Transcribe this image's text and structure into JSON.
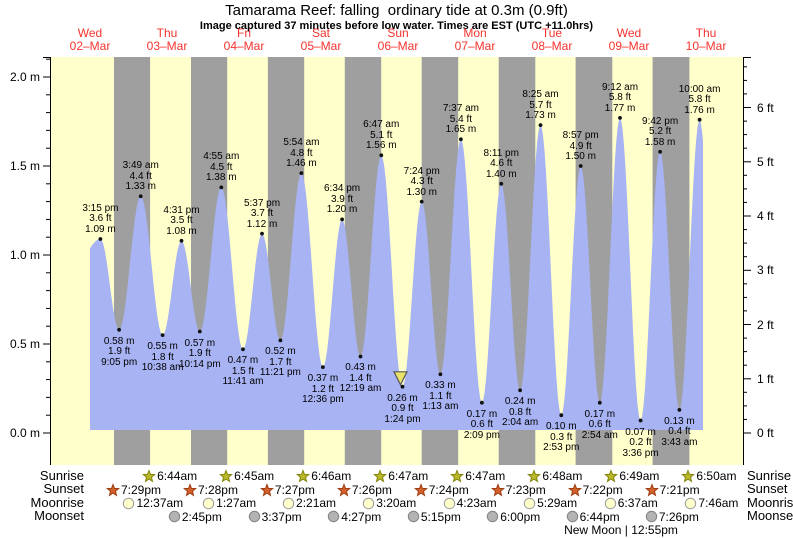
{
  "title": "Tamarama Reef: falling  ordinary tide at 0.3m (0.9ft)",
  "subtitle": "Image captured 37 minutes before low water. Times are EST (UTC +11.0hrs)",
  "days": [
    {
      "weekday": "Wed",
      "date": "02–Mar"
    },
    {
      "weekday": "Thu",
      "date": "03–Mar"
    },
    {
      "weekday": "Fri",
      "date": "04–Mar"
    },
    {
      "weekday": "Sat",
      "date": "05–Mar"
    },
    {
      "weekday": "Sun",
      "date": "06–Mar"
    },
    {
      "weekday": "Mon",
      "date": "07–Mar"
    },
    {
      "weekday": "Tue",
      "date": "08–Mar"
    },
    {
      "weekday": "Wed",
      "date": "09–Mar"
    },
    {
      "weekday": "Thu",
      "date": "10–Mar"
    }
  ],
  "chart_data": {
    "type": "area",
    "title": "Tamarama Reef tide height",
    "x_axis": "days (02-Mar to 10-Mar), position = time of day",
    "y_left": {
      "unit": "m",
      "tick_labels": [
        "0.0 m",
        "0.5 m",
        "1.0 m",
        "1.5 m",
        "2.0 m"
      ],
      "range": [
        0,
        2.11
      ]
    },
    "y_right": {
      "unit": "ft",
      "tick_labels": [
        "0 ft",
        "1 ft",
        "2 ft",
        "3 ft",
        "4 ft",
        "5 ft",
        "6 ft"
      ],
      "range": [
        0,
        6.93
      ]
    },
    "legend": "none",
    "grid": "none",
    "tide_events": [
      {
        "day": 0,
        "time": "3:15 pm",
        "type": "high",
        "m": 1.09,
        "ft": 3.6
      },
      {
        "day": 0,
        "time": "9:05 pm",
        "type": "low",
        "m": 0.58,
        "ft": 1.9
      },
      {
        "day": 1,
        "time": "3:49 am",
        "type": "high",
        "m": 1.33,
        "ft": 4.4
      },
      {
        "day": 1,
        "time": "10:38 am",
        "type": "low",
        "m": 0.55,
        "ft": 1.8
      },
      {
        "day": 1,
        "time": "4:31 pm",
        "type": "high",
        "m": 1.08,
        "ft": 3.5
      },
      {
        "day": 1,
        "time": "10:14 pm",
        "type": "low",
        "m": 0.57,
        "ft": 1.9
      },
      {
        "day": 2,
        "time": "4:55 am",
        "type": "high",
        "m": 1.38,
        "ft": 4.5
      },
      {
        "day": 2,
        "time": "11:41 am",
        "type": "low",
        "m": 0.47,
        "ft": 1.5
      },
      {
        "day": 2,
        "time": "5:37 pm",
        "type": "high",
        "m": 1.12,
        "ft": 3.7
      },
      {
        "day": 2,
        "time": "11:21 pm",
        "type": "low",
        "m": 0.52,
        "ft": 1.7
      },
      {
        "day": 3,
        "time": "5:54 am",
        "type": "high",
        "m": 1.46,
        "ft": 4.8
      },
      {
        "day": 3,
        "time": "12:36 pm",
        "type": "low",
        "m": 0.37,
        "ft": 1.2
      },
      {
        "day": 3,
        "time": "6:34 pm",
        "type": "high",
        "m": 1.2,
        "ft": 3.9
      },
      {
        "day": 4,
        "time": "12:19 am",
        "type": "low",
        "m": 0.43,
        "ft": 1.4
      },
      {
        "day": 4,
        "time": "6:47 am",
        "type": "high",
        "m": 1.56,
        "ft": 5.1
      },
      {
        "day": 4,
        "time": "1:24 pm",
        "type": "low",
        "m": 0.26,
        "ft": 0.9
      },
      {
        "day": 4,
        "time": "7:24 pm",
        "type": "high",
        "m": 1.3,
        "ft": 4.3
      },
      {
        "day": 5,
        "time": "1:13 am",
        "type": "low",
        "m": 0.33,
        "ft": 1.1
      },
      {
        "day": 5,
        "time": "7:37 am",
        "type": "high",
        "m": 1.65,
        "ft": 5.4
      },
      {
        "day": 5,
        "time": "2:09 pm",
        "type": "low",
        "m": 0.17,
        "ft": 0.6
      },
      {
        "day": 5,
        "time": "8:11 pm",
        "type": "high",
        "m": 1.4,
        "ft": 4.6
      },
      {
        "day": 6,
        "time": "2:04 am",
        "type": "low",
        "m": 0.24,
        "ft": 0.8
      },
      {
        "day": 6,
        "time": "8:25 am",
        "type": "high",
        "m": 1.73,
        "ft": 5.7
      },
      {
        "day": 6,
        "time": "2:53 pm",
        "type": "low",
        "m": 0.1,
        "ft": 0.3
      },
      {
        "day": 6,
        "time": "8:57 pm",
        "type": "high",
        "m": 1.5,
        "ft": 4.9
      },
      {
        "day": 7,
        "time": "2:54 am",
        "type": "low",
        "m": 0.17,
        "ft": 0.6
      },
      {
        "day": 7,
        "time": "9:12 am",
        "type": "high",
        "m": 1.77,
        "ft": 5.8
      },
      {
        "day": 7,
        "time": "3:36 pm",
        "type": "low",
        "m": 0.07,
        "ft": 0.2
      },
      {
        "day": 7,
        "time": "9:42 pm",
        "type": "high",
        "m": 1.58,
        "ft": 5.2
      },
      {
        "day": 8,
        "time": "3:43 am",
        "type": "low",
        "m": 0.13,
        "ft": 0.4
      },
      {
        "day": 8,
        "time": "10:00 am",
        "type": "high",
        "m": 1.76,
        "ft": 5.8
      }
    ],
    "current_marker": {
      "event_index": 15,
      "minutes_before_low": 37,
      "current_height_m": 0.3
    }
  },
  "sun_moon": {
    "rows": [
      {
        "label": "Sunrise",
        "icon": "sunrise-star",
        "fill": "#b9b92a",
        "stroke": "#84840f",
        "events": [
          {
            "day": 1,
            "time": "6:44am"
          },
          {
            "day": 2,
            "time": "6:45am"
          },
          {
            "day": 3,
            "time": "6:46am"
          },
          {
            "day": 4,
            "time": "6:47am"
          },
          {
            "day": 5,
            "time": "6:47am"
          },
          {
            "day": 6,
            "time": "6:48am"
          },
          {
            "day": 7,
            "time": "6:49am"
          },
          {
            "day": 8,
            "time": "6:50am"
          }
        ]
      },
      {
        "label": "Sunset",
        "icon": "sunset-star",
        "fill": "#d2622a",
        "stroke": "#9c3c12",
        "events": [
          {
            "day": 0,
            "time": "7:29pm"
          },
          {
            "day": 1,
            "time": "7:28pm"
          },
          {
            "day": 2,
            "time": "7:27pm"
          },
          {
            "day": 3,
            "time": "7:26pm"
          },
          {
            "day": 4,
            "time": "7:24pm"
          },
          {
            "day": 5,
            "time": "7:23pm"
          },
          {
            "day": 6,
            "time": "7:22pm"
          },
          {
            "day": 7,
            "time": "7:21pm"
          }
        ]
      },
      {
        "label": "Moonrise",
        "icon": "moonrise-circle",
        "fill": "#ffffcc",
        "stroke": "#999999",
        "events": [
          {
            "day": 1,
            "time": "12:37am"
          },
          {
            "day": 2,
            "time": "1:27am"
          },
          {
            "day": 3,
            "time": "2:21am"
          },
          {
            "day": 4,
            "time": "3:20am"
          },
          {
            "day": 5,
            "time": "4:23am"
          },
          {
            "day": 6,
            "time": "5:29am"
          },
          {
            "day": 7,
            "time": "6:37am"
          },
          {
            "day": 8,
            "time": "7:46am"
          }
        ]
      },
      {
        "label": "Moonset",
        "icon": "moonset-circle",
        "fill": "#b3b3b3",
        "stroke": "#808080",
        "events": [
          {
            "day": 1,
            "time": "2:45pm"
          },
          {
            "day": 2,
            "time": "3:37pm"
          },
          {
            "day": 3,
            "time": "4:27pm"
          },
          {
            "day": 4,
            "time": "5:15pm"
          },
          {
            "day": 5,
            "time": "6:00pm"
          },
          {
            "day": 6,
            "time": "6:44pm"
          },
          {
            "day": 7,
            "time": "7:26pm"
          }
        ]
      }
    ],
    "footnote": "New Moon | 12:55pm"
  },
  "colors": {
    "background_day": "#ffffcb",
    "background_night": "#9f9f9f",
    "tide_fill": "#a7b3f3",
    "day_label_red": "#f5332d",
    "marker_fill": "#e9e36b",
    "marker_stroke": "#555555",
    "axis": "#000000"
  }
}
